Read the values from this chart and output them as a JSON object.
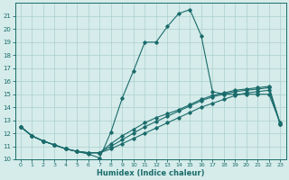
{
  "xlabel": "Humidex (Indice chaleur)",
  "xlim": [
    -0.5,
    23.5
  ],
  "ylim": [
    10,
    22
  ],
  "yticks": [
    10,
    11,
    12,
    13,
    14,
    15,
    16,
    17,
    18,
    19,
    20,
    21
  ],
  "xticks": [
    0,
    1,
    2,
    3,
    4,
    5,
    6,
    7,
    8,
    9,
    10,
    11,
    12,
    13,
    14,
    15,
    16,
    17,
    18,
    19,
    20,
    21,
    22,
    23
  ],
  "bg_color": "#d5ecea",
  "line_color": "#1a6b6b",
  "grid_color": "#aacece",
  "s1_x": [
    0,
    1,
    2,
    3,
    4,
    5,
    6,
    7,
    8,
    9,
    10,
    11,
    12,
    13,
    14,
    15,
    16,
    17,
    18,
    19,
    20,
    21,
    22,
    23
  ],
  "s1_y": [
    12.5,
    11.8,
    11.4,
    11.1,
    10.8,
    10.6,
    10.4,
    10.1,
    12.1,
    14.7,
    16.8,
    19.0,
    19.0,
    20.2,
    21.2,
    21.5,
    19.5,
    15.2,
    15.0,
    15.0,
    15.0,
    15.0,
    15.0,
    12.8
  ],
  "s2_x": [
    0,
    1,
    2,
    3,
    4,
    5,
    6,
    7,
    8,
    9,
    10,
    11,
    12,
    13,
    14,
    15,
    16,
    17,
    18,
    19,
    20,
    21,
    22,
    23
  ],
  "s2_y": [
    12.5,
    11.8,
    11.4,
    11.1,
    10.8,
    10.6,
    10.5,
    10.5,
    10.8,
    11.2,
    11.6,
    12.0,
    12.4,
    12.8,
    13.2,
    13.6,
    14.0,
    14.3,
    14.6,
    14.9,
    15.1,
    15.2,
    15.3,
    12.7
  ],
  "s3_x": [
    0,
    1,
    2,
    3,
    4,
    5,
    6,
    7,
    8,
    9,
    10,
    11,
    12,
    13,
    14,
    15,
    16,
    17,
    18,
    19,
    20,
    21,
    22,
    23
  ],
  "s3_y": [
    12.5,
    11.8,
    11.4,
    11.1,
    10.8,
    10.6,
    10.5,
    10.5,
    11.0,
    11.5,
    12.0,
    12.5,
    12.9,
    13.3,
    13.7,
    14.1,
    14.5,
    14.8,
    15.0,
    15.2,
    15.3,
    15.4,
    15.5,
    12.7
  ],
  "s4_x": [
    0,
    1,
    2,
    3,
    4,
    5,
    6,
    7,
    8,
    9,
    10,
    11,
    12,
    13,
    14,
    15,
    16,
    17,
    18,
    19,
    20,
    21,
    22,
    23
  ],
  "s4_y": [
    12.5,
    11.8,
    11.4,
    11.1,
    10.8,
    10.6,
    10.5,
    10.5,
    11.2,
    11.8,
    12.3,
    12.8,
    13.2,
    13.5,
    13.8,
    14.2,
    14.6,
    14.9,
    15.1,
    15.3,
    15.4,
    15.5,
    15.6,
    12.7
  ]
}
